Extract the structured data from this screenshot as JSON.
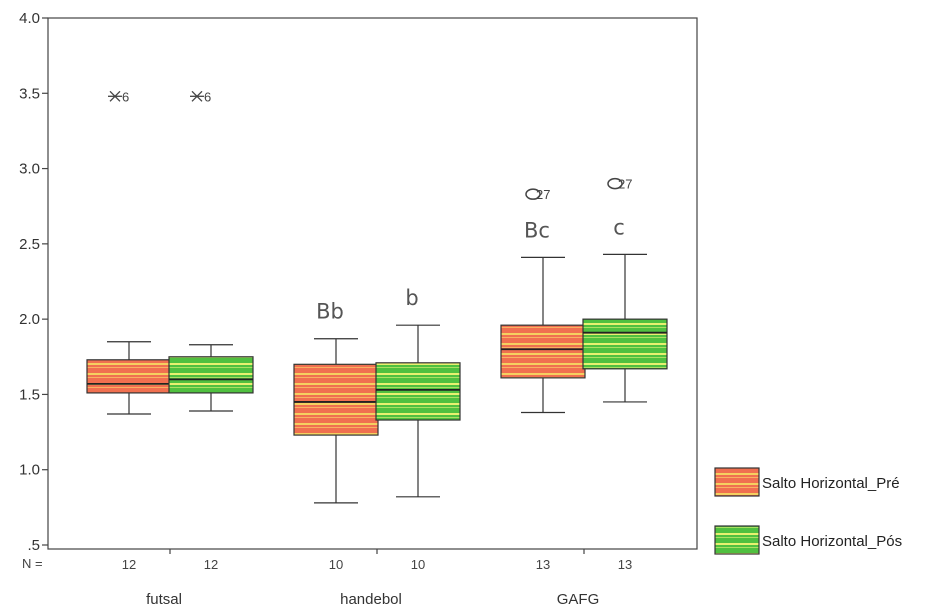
{
  "chart_data": {
    "type": "boxplot",
    "title": "",
    "xlabel": "",
    "ylabel": "",
    "ylim": [
      0.5,
      4.0
    ],
    "y_ticks": [
      "4.0",
      "3.5",
      "3.0",
      "2.5",
      "2.0",
      "1.5",
      "1.0",
      ".5"
    ],
    "n_label": "N =",
    "groups": [
      "futsal",
      "handebol",
      "GAFG"
    ],
    "series": [
      {
        "name": "Salto Horizontal_Pré",
        "color": "#f07050",
        "stripe": "#f5d060",
        "boxes": [
          {
            "group": "futsal",
            "n": "12",
            "min": 1.37,
            "q1": 1.51,
            "median": 1.57,
            "q3": 1.73,
            "max": 1.85,
            "outlier": {
              "value": 3.48,
              "marker": "star",
              "label": "6"
            },
            "annotation": ""
          },
          {
            "group": "handebol",
            "n": "10",
            "min": 0.78,
            "q1": 1.23,
            "median": 1.45,
            "q3": 1.7,
            "max": 1.87,
            "outlier": null,
            "annotation": "Bb"
          },
          {
            "group": "GAFG",
            "n": "13",
            "min": 1.38,
            "q1": 1.61,
            "median": 1.8,
            "q3": 1.96,
            "max": 2.41,
            "outlier": {
              "value": 2.83,
              "marker": "circle",
              "label": "27"
            },
            "annotation": "Bc"
          }
        ]
      },
      {
        "name": "Salto Horizontal_Pós",
        "color": "#50c040",
        "stripe": "#e8f070",
        "boxes": [
          {
            "group": "futsal",
            "n": "12",
            "min": 1.39,
            "q1": 1.51,
            "median": 1.6,
            "q3": 1.75,
            "max": 1.83,
            "outlier": {
              "value": 3.48,
              "marker": "star",
              "label": "6"
            },
            "annotation": ""
          },
          {
            "group": "handebol",
            "n": "10",
            "min": 0.82,
            "q1": 1.33,
            "median": 1.53,
            "q3": 1.71,
            "max": 1.96,
            "outlier": null,
            "annotation": "b"
          },
          {
            "group": "GAFG",
            "n": "13",
            "min": 1.45,
            "q1": 1.67,
            "median": 1.91,
            "q3": 2.0,
            "max": 2.43,
            "outlier": {
              "value": 2.9,
              "marker": "circle",
              "label": "27"
            },
            "annotation": "c"
          }
        ]
      }
    ],
    "legend": {
      "position": "right",
      "items": [
        {
          "label": "Salto Horizontal_Pré",
          "color": "#f07050",
          "stripe": "#f5d060"
        },
        {
          "label": "Salto Horizontal_Pós",
          "color": "#50c040",
          "stripe": "#e8f070"
        }
      ]
    }
  }
}
